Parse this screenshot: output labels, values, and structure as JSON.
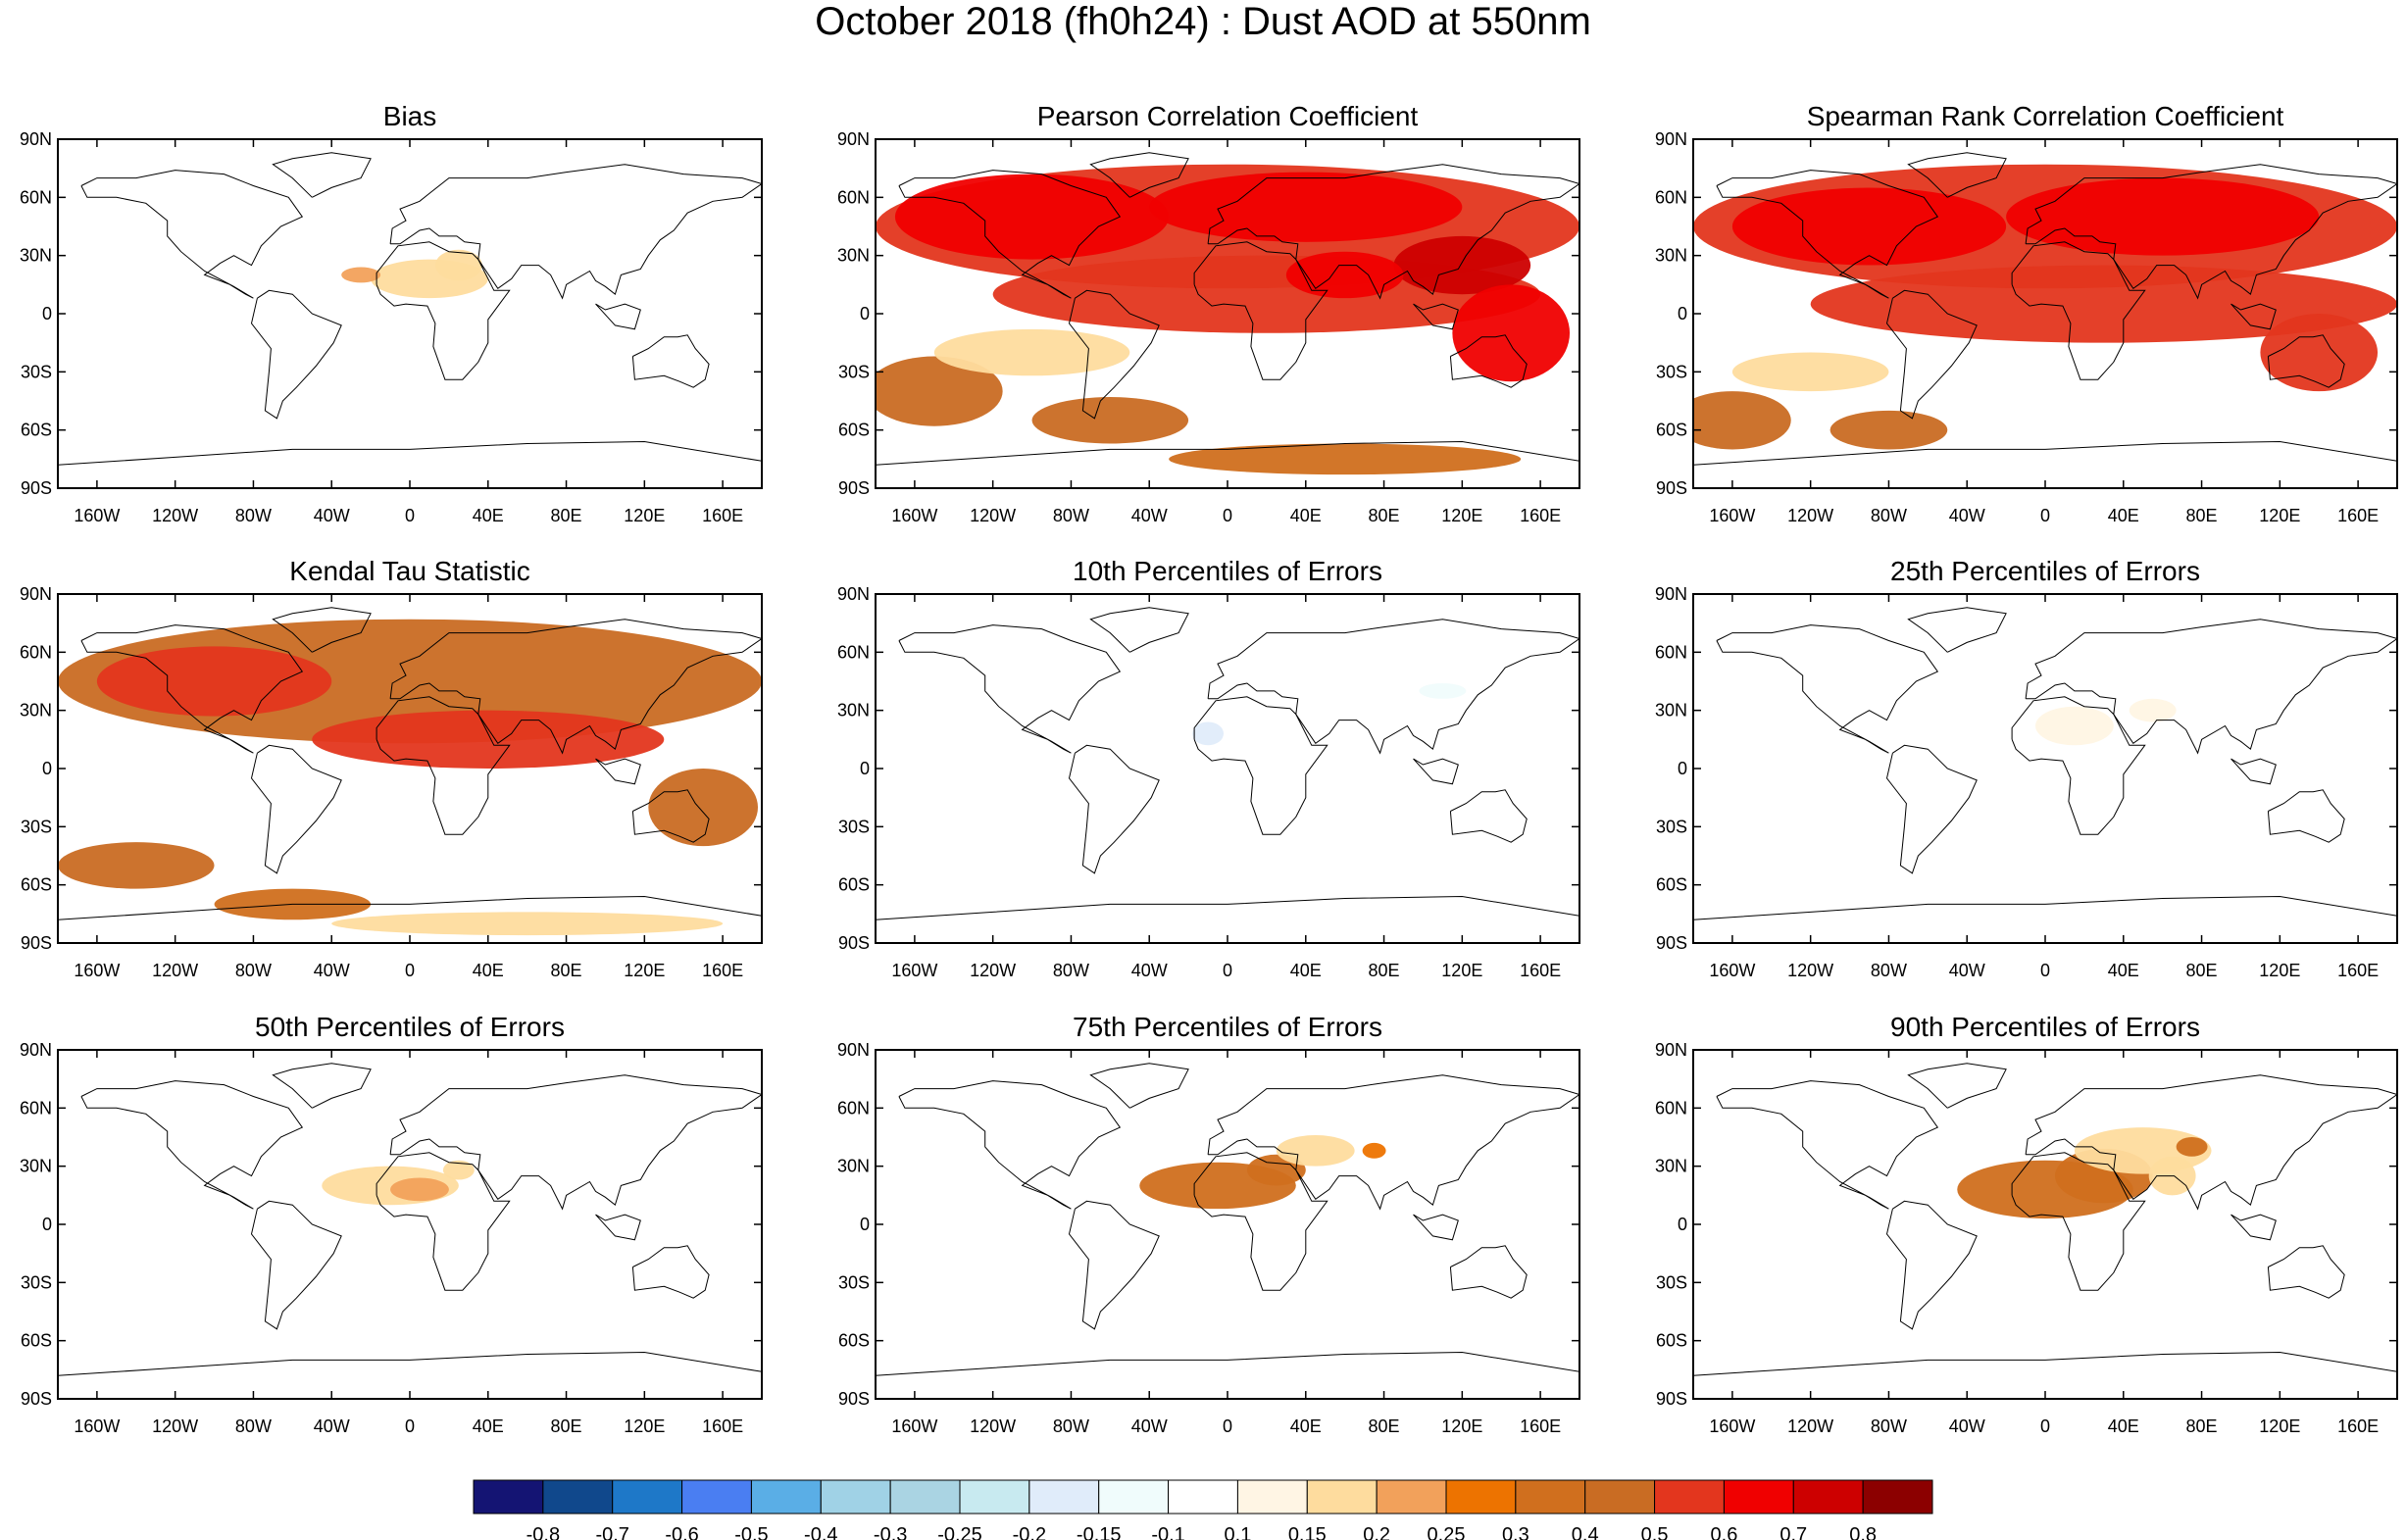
{
  "title": "October 2018 (fh0h24) : Dust AOD at 550nm",
  "chart_data": [
    {
      "type": "heatmap",
      "title": "Bias",
      "lat_ticks": [
        "90N",
        "60N",
        "30N",
        "0",
        "30S",
        "60S",
        "90S"
      ],
      "lon_ticks": [
        "160W",
        "120W",
        "80W",
        "40W",
        "0",
        "40E",
        "80E",
        "120E",
        "160E"
      ],
      "patches": [
        {
          "lon": 10,
          "lat": 18,
          "rx": 30,
          "ry": 10,
          "value": 0.15
        },
        {
          "lon": -25,
          "lat": 20,
          "rx": 10,
          "ry": 4,
          "value": 0.2
        },
        {
          "lon": 25,
          "lat": 25,
          "rx": 12,
          "ry": 8,
          "value": 0.15
        }
      ]
    },
    {
      "type": "heatmap",
      "title": "Pearson Correlation Coefficient",
      "lat_ticks": [
        "90N",
        "60N",
        "30N",
        "0",
        "30S",
        "60S",
        "90S"
      ],
      "lon_ticks": [
        "160W",
        "120W",
        "80W",
        "40W",
        "0",
        "40E",
        "80E",
        "120E",
        "160E"
      ],
      "patches": [
        {
          "lon": 0,
          "lat": 45,
          "rx": 180,
          "ry": 32,
          "value": 0.5
        },
        {
          "lon": 20,
          "lat": 10,
          "rx": 140,
          "ry": 20,
          "value": 0.5
        },
        {
          "lon": -100,
          "lat": 50,
          "rx": 70,
          "ry": 22,
          "value": 0.6
        },
        {
          "lon": 40,
          "lat": 55,
          "rx": 80,
          "ry": 18,
          "value": 0.6
        },
        {
          "lon": 120,
          "lat": 25,
          "rx": 35,
          "ry": 15,
          "value": 0.7
        },
        {
          "lon": 60,
          "lat": 20,
          "rx": 30,
          "ry": 12,
          "value": 0.6
        },
        {
          "lon": 145,
          "lat": -10,
          "rx": 30,
          "ry": 25,
          "value": 0.6
        },
        {
          "lon": -150,
          "lat": -40,
          "rx": 35,
          "ry": 18,
          "value": 0.4
        },
        {
          "lon": -60,
          "lat": -55,
          "rx": 40,
          "ry": 12,
          "value": 0.4
        },
        {
          "lon": 60,
          "lat": -75,
          "rx": 90,
          "ry": 8,
          "value": 0.3
        },
        {
          "lon": -100,
          "lat": -20,
          "rx": 50,
          "ry": 12,
          "value": 0.15
        }
      ]
    },
    {
      "type": "heatmap",
      "title": "Spearman Rank Correlation Coefficient",
      "lat_ticks": [
        "90N",
        "60N",
        "30N",
        "0",
        "30S",
        "60S",
        "90S"
      ],
      "lon_ticks": [
        "160W",
        "120W",
        "80W",
        "40W",
        "0",
        "40E",
        "80E",
        "120E",
        "160E"
      ],
      "patches": [
        {
          "lon": 0,
          "lat": 45,
          "rx": 180,
          "ry": 32,
          "value": 0.5
        },
        {
          "lon": 30,
          "lat": 5,
          "rx": 150,
          "ry": 20,
          "value": 0.5
        },
        {
          "lon": -90,
          "lat": 45,
          "rx": 70,
          "ry": 20,
          "value": 0.6
        },
        {
          "lon": 60,
          "lat": 50,
          "rx": 80,
          "ry": 20,
          "value": 0.6
        },
        {
          "lon": 140,
          "lat": -20,
          "rx": 30,
          "ry": 20,
          "value": 0.5
        },
        {
          "lon": -160,
          "lat": -55,
          "rx": 30,
          "ry": 15,
          "value": 0.4
        },
        {
          "lon": -80,
          "lat": -60,
          "rx": 30,
          "ry": 10,
          "value": 0.4
        },
        {
          "lon": -120,
          "lat": -30,
          "rx": 40,
          "ry": 10,
          "value": 0.15
        }
      ]
    },
    {
      "type": "heatmap",
      "title": "Kendal Tau Statistic",
      "lat_ticks": [
        "90N",
        "60N",
        "30N",
        "0",
        "30S",
        "60S",
        "90S"
      ],
      "lon_ticks": [
        "160W",
        "120W",
        "80W",
        "40W",
        "0",
        "40E",
        "80E",
        "120E",
        "160E"
      ],
      "patches": [
        {
          "lon": 0,
          "lat": 45,
          "rx": 180,
          "ry": 32,
          "value": 0.4
        },
        {
          "lon": -100,
          "lat": 45,
          "rx": 60,
          "ry": 18,
          "value": 0.5
        },
        {
          "lon": 40,
          "lat": 15,
          "rx": 90,
          "ry": 15,
          "value": 0.5
        },
        {
          "lon": 150,
          "lat": -20,
          "rx": 28,
          "ry": 20,
          "value": 0.4
        },
        {
          "lon": -140,
          "lat": -50,
          "rx": 40,
          "ry": 12,
          "value": 0.4
        },
        {
          "lon": -60,
          "lat": -70,
          "rx": 40,
          "ry": 8,
          "value": 0.3
        },
        {
          "lon": 60,
          "lat": -80,
          "rx": 100,
          "ry": 6,
          "value": 0.15
        }
      ]
    },
    {
      "type": "heatmap",
      "title": "10th Percentiles of Errors",
      "lat_ticks": [
        "90N",
        "60N",
        "30N",
        "0",
        "30S",
        "60S",
        "90S"
      ],
      "lon_ticks": [
        "160W",
        "120W",
        "80W",
        "40W",
        "0",
        "40E",
        "80E",
        "120E",
        "160E"
      ],
      "patches": [
        {
          "lon": -10,
          "lat": 18,
          "rx": 8,
          "ry": 6,
          "value": -0.2
        },
        {
          "lon": 10,
          "lat": 40,
          "rx": 25,
          "ry": 6,
          "value": -0.1
        },
        {
          "lon": 110,
          "lat": 40,
          "rx": 12,
          "ry": 4,
          "value": -0.15
        }
      ]
    },
    {
      "type": "heatmap",
      "title": "25th Percentiles of Errors",
      "lat_ticks": [
        "90N",
        "60N",
        "30N",
        "0",
        "30S",
        "60S",
        "90S"
      ],
      "lon_ticks": [
        "160W",
        "120W",
        "80W",
        "40W",
        "0",
        "40E",
        "80E",
        "120E",
        "160E"
      ],
      "patches": [
        {
          "lon": 15,
          "lat": 22,
          "rx": 20,
          "ry": 10,
          "value": 0.1
        },
        {
          "lon": 55,
          "lat": 30,
          "rx": 12,
          "ry": 6,
          "value": 0.1
        }
      ]
    },
    {
      "type": "heatmap",
      "title": "50th Percentiles of Errors",
      "lat_ticks": [
        "90N",
        "60N",
        "30N",
        "0",
        "30S",
        "60S",
        "90S"
      ],
      "lon_ticks": [
        "160W",
        "120W",
        "80W",
        "40W",
        "0",
        "40E",
        "80E",
        "120E",
        "160E"
      ],
      "patches": [
        {
          "lon": -10,
          "lat": 20,
          "rx": 35,
          "ry": 10,
          "value": 0.15
        },
        {
          "lon": 5,
          "lat": 18,
          "rx": 15,
          "ry": 6,
          "value": 0.2
        },
        {
          "lon": 25,
          "lat": 28,
          "rx": 8,
          "ry": 5,
          "value": 0.15
        }
      ]
    },
    {
      "type": "heatmap",
      "title": "75th Percentiles of Errors",
      "lat_ticks": [
        "90N",
        "60N",
        "30N",
        "0",
        "30S",
        "60S",
        "90S"
      ],
      "lon_ticks": [
        "160W",
        "120W",
        "80W",
        "40W",
        "0",
        "40E",
        "80E",
        "120E",
        "160E"
      ],
      "patches": [
        {
          "lon": -5,
          "lat": 20,
          "rx": 40,
          "ry": 12,
          "value": 0.3
        },
        {
          "lon": 25,
          "lat": 28,
          "rx": 15,
          "ry": 8,
          "value": 0.3
        },
        {
          "lon": 45,
          "lat": 38,
          "rx": 20,
          "ry": 8,
          "value": 0.15
        },
        {
          "lon": 75,
          "lat": 38,
          "rx": 6,
          "ry": 4,
          "value": 0.25
        }
      ]
    },
    {
      "type": "heatmap",
      "title": "90th Percentiles of Errors",
      "lat_ticks": [
        "90N",
        "60N",
        "30N",
        "0",
        "30S",
        "60S",
        "90S"
      ],
      "lon_ticks": [
        "160W",
        "120W",
        "80W",
        "40W",
        "0",
        "40E",
        "80E",
        "120E",
        "160E"
      ],
      "patches": [
        {
          "lon": 0,
          "lat": 18,
          "rx": 45,
          "ry": 15,
          "value": 0.35
        },
        {
          "lon": 30,
          "lat": 25,
          "rx": 25,
          "ry": 14,
          "value": 0.3
        },
        {
          "lon": 50,
          "lat": 38,
          "rx": 35,
          "ry": 12,
          "value": 0.15
        },
        {
          "lon": 75,
          "lat": 40,
          "rx": 8,
          "ry": 5,
          "value": 0.3
        },
        {
          "lon": 65,
          "lat": 25,
          "rx": 12,
          "ry": 10,
          "value": 0.15
        }
      ]
    }
  ],
  "colorbar": {
    "labels": [
      "-0.8",
      "-0.7",
      "-0.6",
      "-0.5",
      "-0.4",
      "-0.3",
      "-0.25",
      "-0.2",
      "-0.15",
      "-0.1",
      "0.1",
      "0.15",
      "0.2",
      "0.25",
      "0.3",
      "0.4",
      "0.5",
      "0.6",
      "0.7",
      "0.8"
    ],
    "colors": [
      "#141473",
      "#10488c",
      "#1e78c8",
      "#4a7ef2",
      "#5aaee6",
      "#a0d2e6",
      "#aad4e3",
      "#c8eaf0",
      "#e0ecfa",
      "#f0fcfc",
      "#ffffff",
      "#fff5e4",
      "#fedc9e",
      "#f2a15b",
      "#ed7300",
      "#d06f1e",
      "#c96c23",
      "#e3361e",
      "#f00000",
      "#cd0000",
      "#8c0000"
    ]
  },
  "land_color": "#ffffff",
  "coast_color": "#000000"
}
